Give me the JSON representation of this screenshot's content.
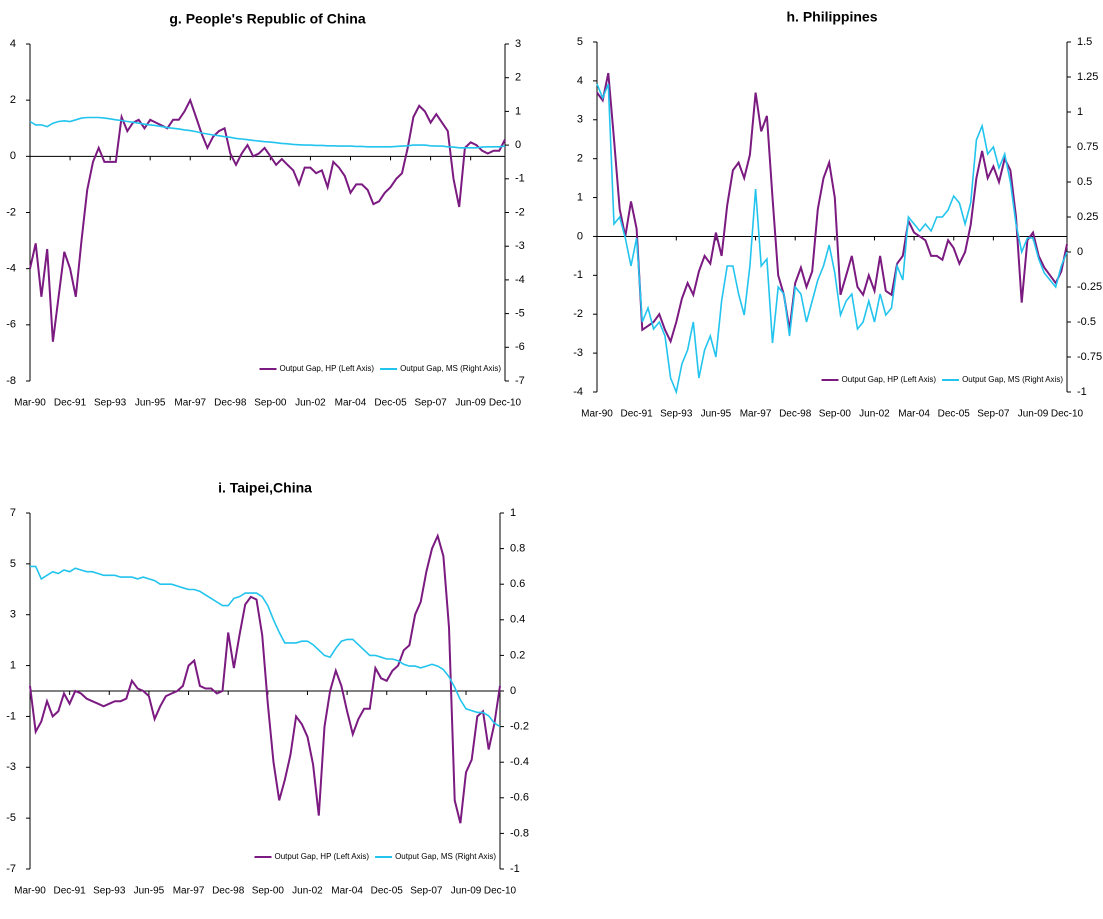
{
  "chart_data": [
    {
      "type": "line",
      "title": "g. People's Republic of China",
      "categories": [
        "Mar-90",
        null,
        null,
        null,
        null,
        null,
        null,
        "Dec-91",
        null,
        null,
        null,
        null,
        null,
        null,
        "Sep-93",
        null,
        null,
        null,
        null,
        null,
        null,
        "Jun-95",
        null,
        null,
        null,
        null,
        null,
        null,
        "Mar-97",
        null,
        null,
        null,
        null,
        null,
        null,
        "Dec-98",
        null,
        null,
        null,
        null,
        null,
        null,
        "Sep-00",
        null,
        null,
        null,
        null,
        null,
        null,
        "Jun-02",
        null,
        null,
        null,
        null,
        null,
        null,
        "Mar-04",
        null,
        null,
        null,
        null,
        null,
        null,
        "Dec-05",
        null,
        null,
        null,
        null,
        null,
        null,
        "Sep-07",
        null,
        null,
        null,
        null,
        null,
        null,
        "Jun-09",
        null,
        null,
        null,
        null,
        null,
        "Dec-10"
      ],
      "series": [
        {
          "name": "Output Gap, HP (Left Axis)",
          "color": "#7b1a80",
          "values": [
            -4.0,
            -3.1,
            -5.0,
            -3.3,
            -6.6,
            -5.0,
            -3.4,
            -4.0,
            -5.0,
            -3.0,
            -1.2,
            -0.2,
            0.3,
            -0.2,
            -0.2,
            -0.2,
            1.4,
            0.9,
            1.2,
            1.3,
            1.0,
            1.3,
            1.2,
            1.1,
            1.0,
            1.3,
            1.3,
            1.6,
            2.0,
            1.4,
            0.8,
            0.3,
            0.7,
            0.9,
            1.0,
            0.1,
            -0.3,
            0.1,
            0.4,
            0.0,
            0.1,
            0.3,
            0.0,
            -0.3,
            -0.1,
            -0.3,
            -0.5,
            -1.0,
            -0.4,
            -0.4,
            -0.6,
            -0.5,
            -1.1,
            -0.2,
            -0.4,
            -0.7,
            -1.3,
            -1.0,
            -1.0,
            -1.2,
            -1.7,
            -1.6,
            -1.3,
            -1.1,
            -0.8,
            -0.6,
            0.3,
            1.4,
            1.8,
            1.6,
            1.2,
            1.5,
            1.2,
            0.9,
            -0.8,
            -1.8,
            0.3,
            0.5,
            0.4,
            0.2,
            0.1,
            0.2,
            0.2,
            0.6
          ]
        },
        {
          "name": "Output Gap, MS (Right Axis)",
          "color": "#22c4ee",
          "axis": "y2",
          "values": [
            0.7,
            0.6,
            0.6,
            0.55,
            0.65,
            0.7,
            0.72,
            0.7,
            0.75,
            0.8,
            0.82,
            0.82,
            0.82,
            0.8,
            0.78,
            0.75,
            0.73,
            0.7,
            0.68,
            0.65,
            0.62,
            0.6,
            0.58,
            0.55,
            0.52,
            0.5,
            0.48,
            0.45,
            0.43,
            0.4,
            0.36,
            0.33,
            0.3,
            0.28,
            0.25,
            0.23,
            0.2,
            0.18,
            0.16,
            0.14,
            0.12,
            0.1,
            0.09,
            0.07,
            0.05,
            0.04,
            0.02,
            0.01,
            0.0,
            0.0,
            -0.01,
            -0.01,
            -0.02,
            -0.02,
            -0.03,
            -0.03,
            -0.03,
            -0.04,
            -0.04,
            -0.05,
            -0.05,
            -0.05,
            -0.05,
            -0.05,
            -0.04,
            -0.03,
            -0.02,
            0.0,
            0.0,
            0.0,
            -0.02,
            -0.03,
            -0.03,
            -0.05,
            -0.06,
            -0.08,
            -0.08,
            -0.08,
            -0.08,
            -0.06,
            -0.05,
            -0.05,
            -0.05,
            -0.03
          ]
        }
      ],
      "ylim": [
        -8,
        4
      ],
      "yticks": [
        -8,
        -6,
        -4,
        -2,
        0,
        2,
        4
      ],
      "y2lim": [
        -7,
        3
      ],
      "y2ticks": [
        -7,
        -6,
        -5,
        -4,
        -3,
        -2,
        -1,
        0,
        1,
        2,
        3
      ],
      "legend": "lower right"
    },
    {
      "type": "line",
      "title": "h. Philippines",
      "categories": [
        "Mar-90",
        null,
        null,
        null,
        null,
        null,
        null,
        "Dec-91",
        null,
        null,
        null,
        null,
        null,
        null,
        "Sep-93",
        null,
        null,
        null,
        null,
        null,
        null,
        "Jun-95",
        null,
        null,
        null,
        null,
        null,
        null,
        "Mar-97",
        null,
        null,
        null,
        null,
        null,
        null,
        "Dec-98",
        null,
        null,
        null,
        null,
        null,
        null,
        "Sep-00",
        null,
        null,
        null,
        null,
        null,
        null,
        "Jun-02",
        null,
        null,
        null,
        null,
        null,
        null,
        "Mar-04",
        null,
        null,
        null,
        null,
        null,
        null,
        "Dec-05",
        null,
        null,
        null,
        null,
        null,
        null,
        "Sep-07",
        null,
        null,
        null,
        null,
        null,
        null,
        "Jun-09",
        null,
        null,
        null,
        null,
        null,
        "Dec-10"
      ],
      "series": [
        {
          "name": "Output Gap, HP (Left Axis)",
          "color": "#7b1a80",
          "values": [
            3.7,
            3.5,
            4.2,
            2.5,
            0.7,
            0.0,
            0.9,
            0.2,
            -2.4,
            -2.3,
            -2.2,
            -2.0,
            -2.4,
            -2.7,
            -2.2,
            -1.6,
            -1.2,
            -1.5,
            -0.9,
            -0.5,
            -0.7,
            0.1,
            -0.5,
            0.8,
            1.7,
            1.9,
            1.5,
            2.1,
            3.7,
            2.7,
            3.1,
            1.0,
            -1.0,
            -1.5,
            -2.4,
            -1.2,
            -0.8,
            -1.3,
            -0.9,
            0.7,
            1.5,
            1.9,
            1.0,
            -1.5,
            -1.0,
            -0.5,
            -1.3,
            -1.5,
            -1.0,
            -1.4,
            -0.5,
            -1.4,
            -1.5,
            -0.7,
            -0.5,
            0.4,
            0.1,
            0.0,
            -0.1,
            -0.5,
            -0.5,
            -0.6,
            -0.1,
            -0.3,
            -0.7,
            -0.4,
            0.3,
            1.5,
            2.2,
            1.5,
            1.8,
            1.4,
            2.0,
            1.7,
            0.5,
            -1.7,
            -0.1,
            0.1,
            -0.5,
            -0.8,
            -1.0,
            -1.2,
            -0.9,
            -0.2
          ]
        },
        {
          "name": "Output Gap, MS (Right Axis)",
          "color": "#22c4ee",
          "axis": "y2",
          "values": [
            1.2,
            1.1,
            1.2,
            0.2,
            0.25,
            0.1,
            -0.1,
            0.1,
            -0.5,
            -0.4,
            -0.55,
            -0.5,
            -0.6,
            -0.9,
            -1.0,
            -0.8,
            -0.7,
            -0.5,
            -0.9,
            -0.7,
            -0.6,
            -0.75,
            -0.35,
            -0.1,
            -0.1,
            -0.3,
            -0.45,
            -0.1,
            0.45,
            -0.1,
            -0.05,
            -0.65,
            -0.25,
            -0.3,
            -0.6,
            -0.25,
            -0.3,
            -0.5,
            -0.35,
            -0.2,
            -0.1,
            0.05,
            -0.15,
            -0.45,
            -0.35,
            -0.3,
            -0.55,
            -0.5,
            -0.35,
            -0.5,
            -0.3,
            -0.45,
            -0.4,
            -0.1,
            -0.2,
            0.25,
            0.2,
            0.15,
            0.2,
            0.15,
            0.25,
            0.25,
            0.3,
            0.4,
            0.35,
            0.2,
            0.35,
            0.8,
            0.9,
            0.7,
            0.75,
            0.6,
            0.7,
            0.5,
            0.2,
            0.0,
            0.1,
            0.1,
            -0.05,
            -0.15,
            -0.2,
            -0.25,
            -0.1,
            0.0
          ]
        }
      ],
      "ylim": [
        -4,
        5
      ],
      "yticks": [
        -4,
        -3,
        -2,
        -1,
        0,
        1,
        2,
        3,
        4,
        5
      ],
      "y2lim": [
        -1,
        1.5
      ],
      "y2ticks": [
        -1,
        -0.75,
        -0.5,
        -0.25,
        0,
        0.25,
        0.5,
        0.75,
        1,
        1.25,
        1.5
      ],
      "legend": "lower right"
    },
    {
      "type": "line",
      "title": "i. Taipei,China",
      "categories": [
        "Mar-90",
        null,
        null,
        null,
        null,
        null,
        null,
        "Dec-91",
        null,
        null,
        null,
        null,
        null,
        null,
        "Sep-93",
        null,
        null,
        null,
        null,
        null,
        null,
        "Jun-95",
        null,
        null,
        null,
        null,
        null,
        null,
        "Mar-97",
        null,
        null,
        null,
        null,
        null,
        null,
        "Dec-98",
        null,
        null,
        null,
        null,
        null,
        null,
        "Sep-00",
        null,
        null,
        null,
        null,
        null,
        null,
        "Jun-02",
        null,
        null,
        null,
        null,
        null,
        null,
        "Mar-04",
        null,
        null,
        null,
        null,
        null,
        null,
        "Dec-05",
        null,
        null,
        null,
        null,
        null,
        null,
        "Sep-07",
        null,
        null,
        null,
        null,
        null,
        null,
        "Jun-09",
        null,
        null,
        null,
        null,
        null,
        "Dec-10"
      ],
      "series": [
        {
          "name": "Output Gap, HP (Left Axis)",
          "color": "#7b1a80",
          "values": [
            0.2,
            -1.6,
            -1.2,
            -0.4,
            -1.0,
            -0.8,
            -0.1,
            -0.5,
            0.0,
            -0.1,
            -0.3,
            -0.4,
            -0.5,
            -0.6,
            -0.5,
            -0.4,
            -0.4,
            -0.3,
            0.4,
            0.1,
            0.0,
            -0.2,
            -1.1,
            -0.6,
            -0.2,
            -0.1,
            0.0,
            0.2,
            1.0,
            1.2,
            0.2,
            0.1,
            0.1,
            -0.1,
            0.0,
            2.3,
            0.9,
            2.2,
            3.4,
            3.7,
            3.6,
            2.2,
            -0.5,
            -2.8,
            -4.3,
            -3.5,
            -2.5,
            -1.0,
            -1.3,
            -1.8,
            -2.9,
            -4.9,
            -1.4,
            0.0,
            0.8,
            0.2,
            -0.8,
            -1.7,
            -1.1,
            -0.7,
            -0.7,
            0.9,
            0.5,
            0.4,
            0.8,
            1.0,
            1.6,
            1.8,
            3.0,
            3.5,
            4.7,
            5.6,
            6.1,
            5.3,
            2.5,
            -4.3,
            -5.2,
            -3.2,
            -2.7,
            -1.0,
            -0.8,
            -2.3,
            -1.3,
            0.2
          ]
        },
        {
          "name": "Output Gap, MS (Right Axis)",
          "color": "#22c4ee",
          "axis": "y2",
          "values": [
            0.7,
            0.7,
            0.63,
            0.65,
            0.67,
            0.66,
            0.68,
            0.67,
            0.69,
            0.68,
            0.67,
            0.67,
            0.66,
            0.65,
            0.65,
            0.65,
            0.64,
            0.64,
            0.64,
            0.63,
            0.64,
            0.63,
            0.62,
            0.6,
            0.6,
            0.6,
            0.59,
            0.58,
            0.57,
            0.57,
            0.56,
            0.54,
            0.52,
            0.5,
            0.48,
            0.48,
            0.52,
            0.53,
            0.55,
            0.55,
            0.55,
            0.53,
            0.48,
            0.4,
            0.33,
            0.27,
            0.27,
            0.27,
            0.28,
            0.28,
            0.26,
            0.23,
            0.2,
            0.19,
            0.24,
            0.28,
            0.29,
            0.29,
            0.26,
            0.23,
            0.2,
            0.2,
            0.19,
            0.18,
            0.18,
            0.17,
            0.15,
            0.14,
            0.14,
            0.13,
            0.14,
            0.15,
            0.14,
            0.12,
            0.08,
            0.02,
            -0.05,
            -0.1,
            -0.11,
            -0.12,
            -0.12,
            -0.14,
            -0.18,
            -0.2
          ]
        }
      ],
      "ylim": [
        -7,
        7
      ],
      "yticks": [
        -7,
        -5,
        -3,
        -1,
        1,
        3,
        5,
        7
      ],
      "y2lim": [
        -1,
        1
      ],
      "y2ticks": [
        -1,
        -0.8,
        -0.6,
        -0.4,
        -0.2,
        0,
        0.2,
        0.4,
        0.6,
        0.8,
        1
      ],
      "legend": "lower right"
    }
  ]
}
